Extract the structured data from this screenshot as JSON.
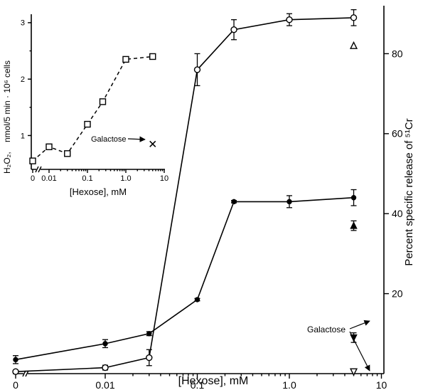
{
  "chart_data": [
    {
      "type": "line",
      "xlabel": "[Hexose], mM",
      "ylabel": "Percent specific release of ⁵¹Cr",
      "x_scale": "log",
      "x_ticks": [
        "0",
        "0.01",
        "0.1",
        "1.0",
        "10"
      ],
      "y_ticks": [
        "20",
        "40",
        "60",
        "80"
      ],
      "ylim": [
        0,
        92
      ],
      "series": [
        {
          "marker": "open-circle",
          "points": [
            {
              "x": 0,
              "y": 0.5,
              "err": 0
            },
            {
              "x": 0.01,
              "y": 1.5,
              "err": 0.6
            },
            {
              "x": 0.03,
              "y": 4,
              "err": 2
            },
            {
              "x": 0.1,
              "y": 76,
              "err": 4
            },
            {
              "x": 0.25,
              "y": 86,
              "err": 2.5
            },
            {
              "x": 1.0,
              "y": 88.5,
              "err": 1.5
            },
            {
              "x": 5.0,
              "y": 89,
              "err": 2
            }
          ]
        },
        {
          "marker": "filled-circle",
          "points": [
            {
              "x": 0,
              "y": 3.5,
              "err": 1
            },
            {
              "x": 0.01,
              "y": 7.5,
              "err": 1
            },
            {
              "x": 0.03,
              "y": 10,
              "err": 0.5
            },
            {
              "x": 0.1,
              "y": 18.5,
              "err": 0.3
            },
            {
              "x": 0.25,
              "y": 43,
              "err": 0.3
            },
            {
              "x": 1.0,
              "y": 43,
              "err": 1.5
            },
            {
              "x": 5.0,
              "y": 44,
              "err": 2
            }
          ]
        }
      ],
      "extra_points": [
        {
          "marker": "open-triangle",
          "x": 5.0,
          "y": 82,
          "err": 0
        },
        {
          "marker": "filled-triangle",
          "x": 5.0,
          "y": 37,
          "err": 1.2
        },
        {
          "marker": "filled-triangle-down",
          "x": 5.0,
          "y": 9,
          "err": 1.2
        },
        {
          "marker": "open-triangle-down",
          "x": 5.0,
          "y": 0.5,
          "err": 0
        }
      ],
      "annotations": [
        {
          "text": "Galactose"
        }
      ]
    },
    {
      "type": "line",
      "xlabel": "[Hexose], mM",
      "ylabel_prefix": "H₂O₂,",
      "ylabel_main": "nmol/5 min · 10⁶ cells",
      "x_scale": "log",
      "x_ticks": [
        "0",
        "0.01",
        "0.1",
        "1.0",
        "10"
      ],
      "y_ticks": [
        "1",
        "2",
        "3"
      ],
      "ylim": [
        0.4,
        3.15
      ],
      "series": [
        {
          "marker": "open-square",
          "linestyle": "dashed",
          "points": [
            {
              "x": 0,
              "y": 0.55
            },
            {
              "x": 0.01,
              "y": 0.8
            },
            {
              "x": 0.03,
              "y": 0.68
            },
            {
              "x": 0.1,
              "y": 1.2
            },
            {
              "x": 0.25,
              "y": 1.6
            },
            {
              "x": 1.0,
              "y": 2.35
            },
            {
              "x": 5.0,
              "y": 2.4
            }
          ]
        }
      ],
      "extra_points": [
        {
          "marker": "cross",
          "x": 5.0,
          "y": 0.85
        }
      ],
      "annotations": [
        {
          "text": "Galactose"
        }
      ]
    }
  ]
}
